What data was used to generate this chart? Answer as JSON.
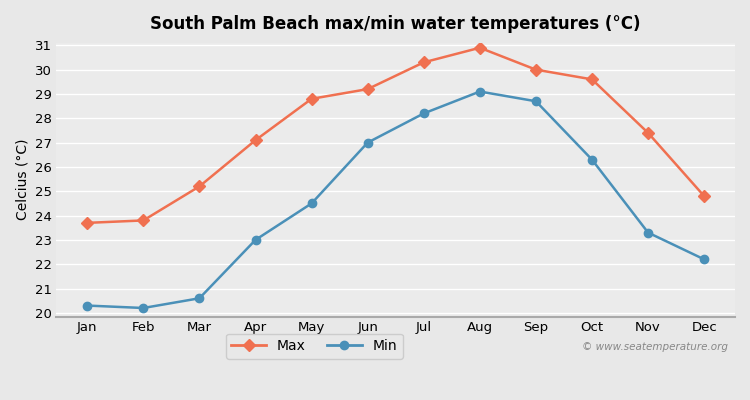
{
  "months": [
    "Jan",
    "Feb",
    "Mar",
    "Apr",
    "May",
    "Jun",
    "Jul",
    "Aug",
    "Sep",
    "Oct",
    "Nov",
    "Dec"
  ],
  "max_temps": [
    23.7,
    23.8,
    25.2,
    27.1,
    28.8,
    29.2,
    30.3,
    30.9,
    30.0,
    29.6,
    27.4,
    24.8
  ],
  "min_temps": [
    20.3,
    20.2,
    20.6,
    23.0,
    24.5,
    27.0,
    28.2,
    29.1,
    28.7,
    26.3,
    23.3,
    22.2
  ],
  "max_color": "#f07050",
  "min_color": "#4a90b8",
  "title": "South Palm Beach max/min water temperatures (°C)",
  "ylabel": "Celcius (°C)",
  "ylim": [
    20,
    31
  ],
  "yticks": [
    20,
    21,
    22,
    23,
    24,
    25,
    26,
    27,
    28,
    29,
    30,
    31
  ],
  "bg_color": "#e8e8e8",
  "plot_bg_color": "#ebebeb",
  "grid_color": "#ffffff",
  "watermark": "© www.seatemperature.org",
  "legend_max": "Max",
  "legend_min": "Min"
}
